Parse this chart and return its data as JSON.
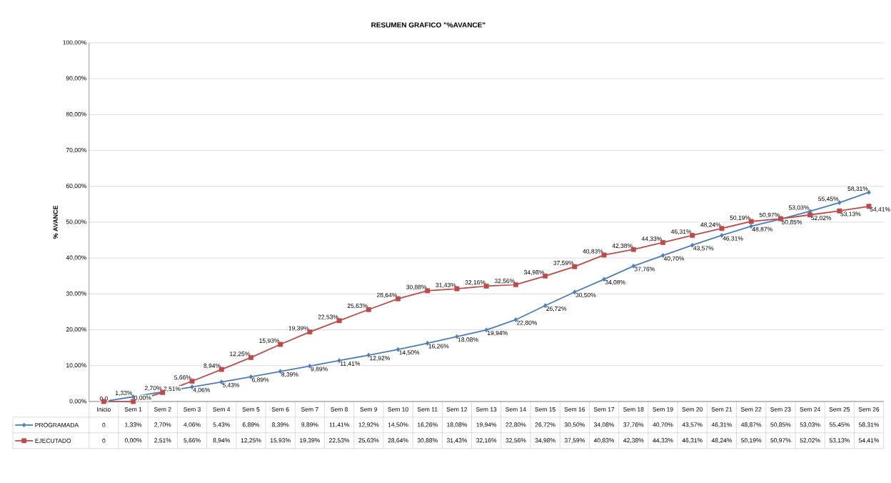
{
  "chart_data": {
    "type": "line",
    "title": "RESUMEN GRAFICO \"%AVANCE\"",
    "ylabel": "% AVANCE",
    "categories": [
      "Inicio",
      "Sem 1",
      "Sem 2",
      "Sem 3",
      "Sem 4",
      "Sem 5",
      "Sem 6",
      "Sem 7",
      "Sem 8",
      "Sem 9",
      "Sem 10",
      "Sem 11",
      "Sem 12",
      "Sem 13",
      "Sem 14",
      "Sem 15",
      "Sem 16",
      "Sem 17",
      "Sem 18",
      "Sem 19",
      "Sem 20",
      "Sem 21",
      "Sem 22",
      "Sem 23",
      "Sem 24",
      "Sem 25",
      "Sem 26"
    ],
    "ylim": [
      0,
      100
    ],
    "yticks": [
      {
        "value": 0,
        "label": "0,00%"
      },
      {
        "value": 10,
        "label": "10,00%"
      },
      {
        "value": 20,
        "label": "20,00%"
      },
      {
        "value": 30,
        "label": "30,00%"
      },
      {
        "value": 40,
        "label": "40,00%"
      },
      {
        "value": 50,
        "label": "50,00%"
      },
      {
        "value": 60,
        "label": "60,00%"
      },
      {
        "value": 70,
        "label": "70,00%"
      },
      {
        "value": 80,
        "label": "80,00%"
      },
      {
        "value": 90,
        "label": "90,00%"
      },
      {
        "value": 100,
        "label": "100,00%"
      }
    ],
    "grid": "y",
    "legend": "bottom",
    "series": [
      {
        "name": "PROGRAMADA",
        "color": "#4a7ebb",
        "marker": "diamond",
        "values": [
          0,
          1.33,
          2.7,
          4.06,
          5.43,
          6.89,
          8.39,
          9.89,
          11.41,
          12.92,
          14.5,
          16.26,
          18.08,
          19.94,
          22.8,
          26.72,
          30.5,
          34.08,
          37.76,
          40.7,
          43.57,
          46.31,
          48.87,
          50.85,
          53.03,
          55.45,
          58.31
        ],
        "value_labels": [
          "0",
          "1,33%",
          "2,70%",
          "4,06%",
          "5,43%",
          "6,89%",
          "8,39%",
          "9,89%",
          "11,41%",
          "12,92%",
          "14,50%",
          "16,26%",
          "18,08%",
          "19,94%",
          "22,80%",
          "26,72%",
          "30,50%",
          "34,08%",
          "37,76%",
          "40,70%",
          "43,57%",
          "46,31%",
          "48,87%",
          "50,85%",
          "53,03%",
          "55,45%",
          "58,31%"
        ]
      },
      {
        "name": "EJECUTADO",
        "color": "#be4b48",
        "marker": "square",
        "values": [
          0,
          0.0,
          2.51,
          5.66,
          8.94,
          12.25,
          15.93,
          19.39,
          22.53,
          25.63,
          28.64,
          30.88,
          31.43,
          32.16,
          32.56,
          34.98,
          37.59,
          40.83,
          42.38,
          44.33,
          46.31,
          48.24,
          50.19,
          50.97,
          52.02,
          53.13,
          54.41
        ],
        "value_labels": [
          "0",
          "0,00%",
          "2,51%",
          "5,66%",
          "8,94%",
          "12,25%",
          "15,93%",
          "19,39%",
          "22,53%",
          "25,63%",
          "28,64%",
          "30,88%",
          "31,43%",
          "32,16%",
          "32,56%",
          "34,98%",
          "37,59%",
          "40,83%",
          "42,38%",
          "44,33%",
          "46,31%",
          "48,24%",
          "50,19%",
          "50,97%",
          "52,02%",
          "53,13%",
          "54,41%"
        ]
      }
    ]
  }
}
